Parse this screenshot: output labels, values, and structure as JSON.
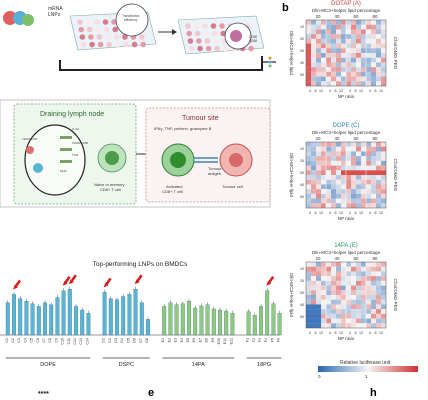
{
  "panel_letters": {
    "b": "b",
    "e": "e",
    "h": "h"
  },
  "top_left": {
    "mrna_label": "mRNA\nLNPs",
    "transfection_label": "Transfection\nefficiency",
    "marker_label": "CD80\nCD86"
  },
  "schematic": {
    "lymph_title": "Draining lymph node",
    "tumour_title": "Tumour site",
    "naive_label": "Naive or memory\nCD8+ T cell",
    "cytokines_label": "IFNγ, TNF, perforin, granzyme B",
    "activated_label": "Activated\nCD8+ T cell",
    "antigen_label": "Tumour\nantigen",
    "tumour_cell_label": "Tumour cell",
    "small_labels": [
      "mRNA LNP",
      "IL-12",
      "CD80/CD86",
      "TCR",
      "MHC"
    ]
  },
  "bar_chart": {
    "title": "Top-performing LNPs on BMDCs",
    "group_labels": [
      "DOPE",
      "DSPC",
      "14PA",
      "18PG"
    ],
    "groups": [
      {
        "name": "DOPE",
        "color": "#5ab4d6",
        "ids": [
          "C1",
          "C2",
          "C3",
          "C4",
          "C5",
          "C6",
          "C7",
          "C8",
          "C9",
          "C10",
          "C11",
          "C12",
          "C13",
          "C14"
        ]
      },
      {
        "name": "DSPC",
        "color": "#5ab4d6",
        "ids": [
          "D1",
          "D2",
          "D3",
          "D4",
          "D5",
          "D6",
          "D7",
          "D8"
        ]
      },
      {
        "name": "14PA",
        "color": "#8fc97a",
        "ids": [
          "E1",
          "E2",
          "E3",
          "E4",
          "E5",
          "E6",
          "E7",
          "E8",
          "E9",
          "E10",
          "E11",
          "E12"
        ]
      },
      {
        "name": "18PG",
        "color": "#8fc97a",
        "ids": [
          "F1",
          "F2",
          "F3",
          "F4",
          "F5",
          "F6"
        ]
      }
    ],
    "values": {
      "DOPE": [
        0.62,
        0.78,
        0.7,
        0.65,
        0.6,
        0.55,
        0.62,
        0.58,
        0.72,
        0.85,
        0.88,
        0.55,
        0.48,
        0.42
      ],
      "DSPC": [
        0.82,
        0.7,
        0.68,
        0.74,
        0.78,
        0.88,
        0.62,
        0.3
      ],
      "14PA": [
        0.55,
        0.62,
        0.58,
        0.6,
        0.65,
        0.52,
        0.56,
        0.58,
        0.5,
        0.48,
        0.46,
        0.42
      ],
      "18PG": [
        0.45,
        0.38,
        0.55,
        0.85,
        0.6,
        0.42
      ]
    },
    "highlighted": [
      "C2",
      "C10",
      "C11",
      "D1",
      "D6",
      "F4"
    ]
  },
  "heatmaps": [
    {
      "title": "DOTAP (A)",
      "title_color": "#d23a3a"
    },
    {
      "title": "DOPE (C)",
      "title_color": "#2a7fb8"
    },
    {
      "title": "14PA (E)",
      "title_color": "#2a9b6a"
    }
  ],
  "heatmap_axes": {
    "top_label": "Dlin-MC3+helper lipid percentage",
    "top_ticks": [
      "20",
      "40",
      "60",
      "80"
    ],
    "left_label": "Dlin-MC3+helper lipid",
    "right_label": "Chol:DMG-PEG",
    "bottom_ticks": [
      "4",
      "8",
      "12"
    ],
    "bottom_label": "NP ratio",
    "left_ticks": [
      "10",
      "20",
      "30",
      "40",
      "50"
    ]
  },
  "colorbar": {
    "label": "Relative luciferase unit",
    "ticks": [
      "0",
      "1"
    ]
  },
  "footer_text": "****"
}
